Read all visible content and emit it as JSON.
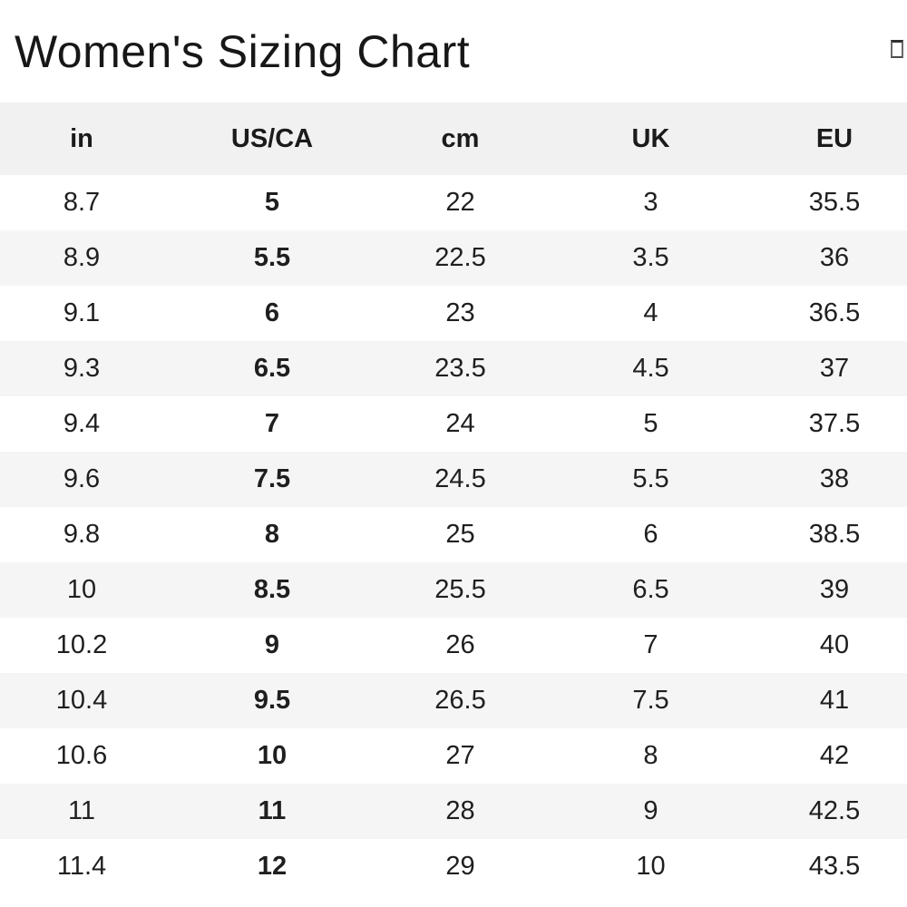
{
  "page": {
    "title": "Women's Sizing Chart"
  },
  "icons": {
    "corner_glyph": "missing-glyph-box"
  },
  "table": {
    "columns": [
      "in",
      "US/CA",
      "cm",
      "UK",
      "EU"
    ],
    "bold_column": "US/CA",
    "bold_column_index": 1,
    "rows": [
      [
        "8.7",
        "5",
        "22",
        "3",
        "35.5"
      ],
      [
        "8.9",
        "5.5",
        "22.5",
        "3.5",
        "36"
      ],
      [
        "9.1",
        "6",
        "23",
        "4",
        "36.5"
      ],
      [
        "9.3",
        "6.5",
        "23.5",
        "4.5",
        "37"
      ],
      [
        "9.4",
        "7",
        "24",
        "5",
        "37.5"
      ],
      [
        "9.6",
        "7.5",
        "24.5",
        "5.5",
        "38"
      ],
      [
        "9.8",
        "8",
        "25",
        "6",
        "38.5"
      ],
      [
        "10",
        "8.5",
        "25.5",
        "6.5",
        "39"
      ],
      [
        "10.2",
        "9",
        "26",
        "7",
        "40"
      ],
      [
        "10.4",
        "9.5",
        "26.5",
        "7.5",
        "41"
      ],
      [
        "10.6",
        "10",
        "27",
        "8",
        "42"
      ],
      [
        "11",
        "11",
        "28",
        "9",
        "42.5"
      ],
      [
        "11.4",
        "12",
        "29",
        "10",
        "43.5"
      ]
    ]
  },
  "colors": {
    "header_bg": "#f1f1f1",
    "stripe_bg": "#f5f5f5",
    "row_bg": "#ffffff",
    "text": "#1f1f1f",
    "title_text": "#171717"
  }
}
